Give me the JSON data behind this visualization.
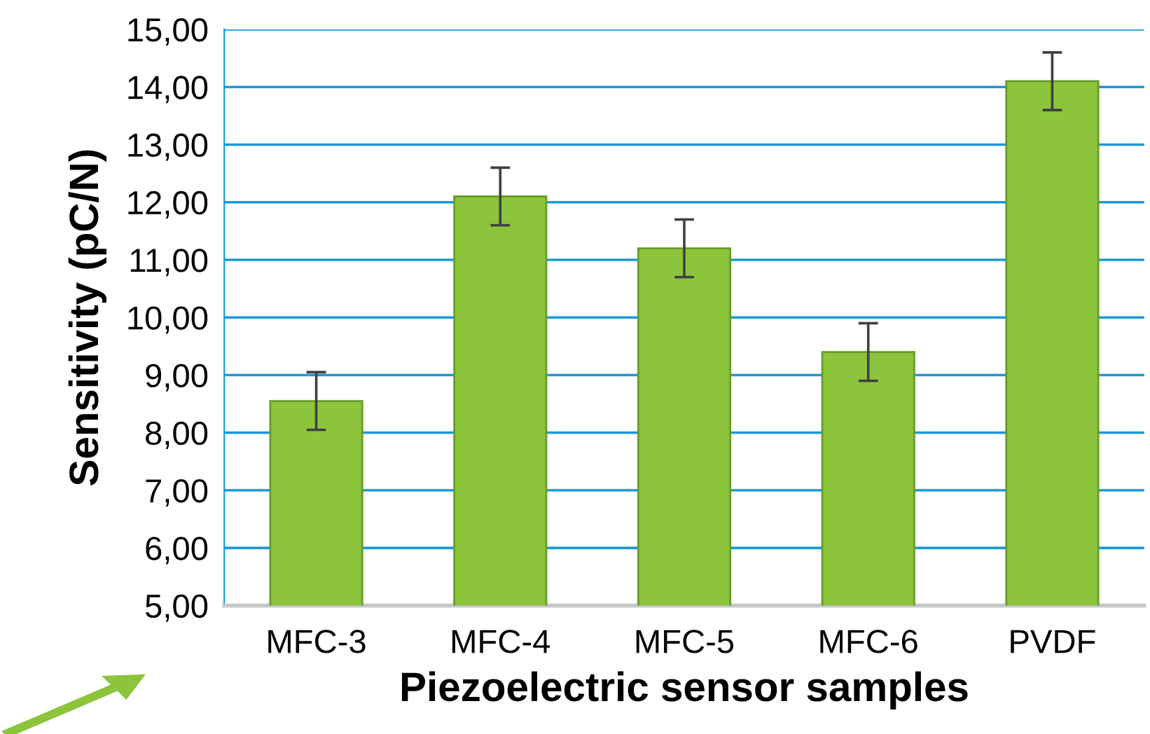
{
  "chart_data": {
    "type": "bar",
    "xlabel": "Piezoelectric sensor samples",
    "ylabel": "Sensitivity (pC/N)",
    "categories": [
      "MFC-3",
      "MFC-4",
      "MFC-5",
      "MFC-6",
      "PVDF"
    ],
    "values": [
      8.55,
      12.1,
      11.2,
      9.4,
      14.1
    ],
    "errors": [
      0.5,
      0.5,
      0.5,
      0.5,
      0.5
    ],
    "color": "#8cc43c",
    "ylim": [
      5,
      15
    ],
    "yticks": [
      {
        "value": 5,
        "label": "5,00"
      },
      {
        "value": 6,
        "label": "6,00"
      },
      {
        "value": 7,
        "label": "7,00"
      },
      {
        "value": 8,
        "label": "8,00"
      },
      {
        "value": 9,
        "label": "9,00"
      },
      {
        "value": 10,
        "label": "10,00"
      },
      {
        "value": 11,
        "label": "11,00"
      },
      {
        "value": 12,
        "label": "12,00"
      },
      {
        "value": 13,
        "label": "13,00"
      },
      {
        "value": 14,
        "label": "14,00"
      },
      {
        "value": 15,
        "label": "15,00"
      }
    ],
    "grid": "y"
  }
}
